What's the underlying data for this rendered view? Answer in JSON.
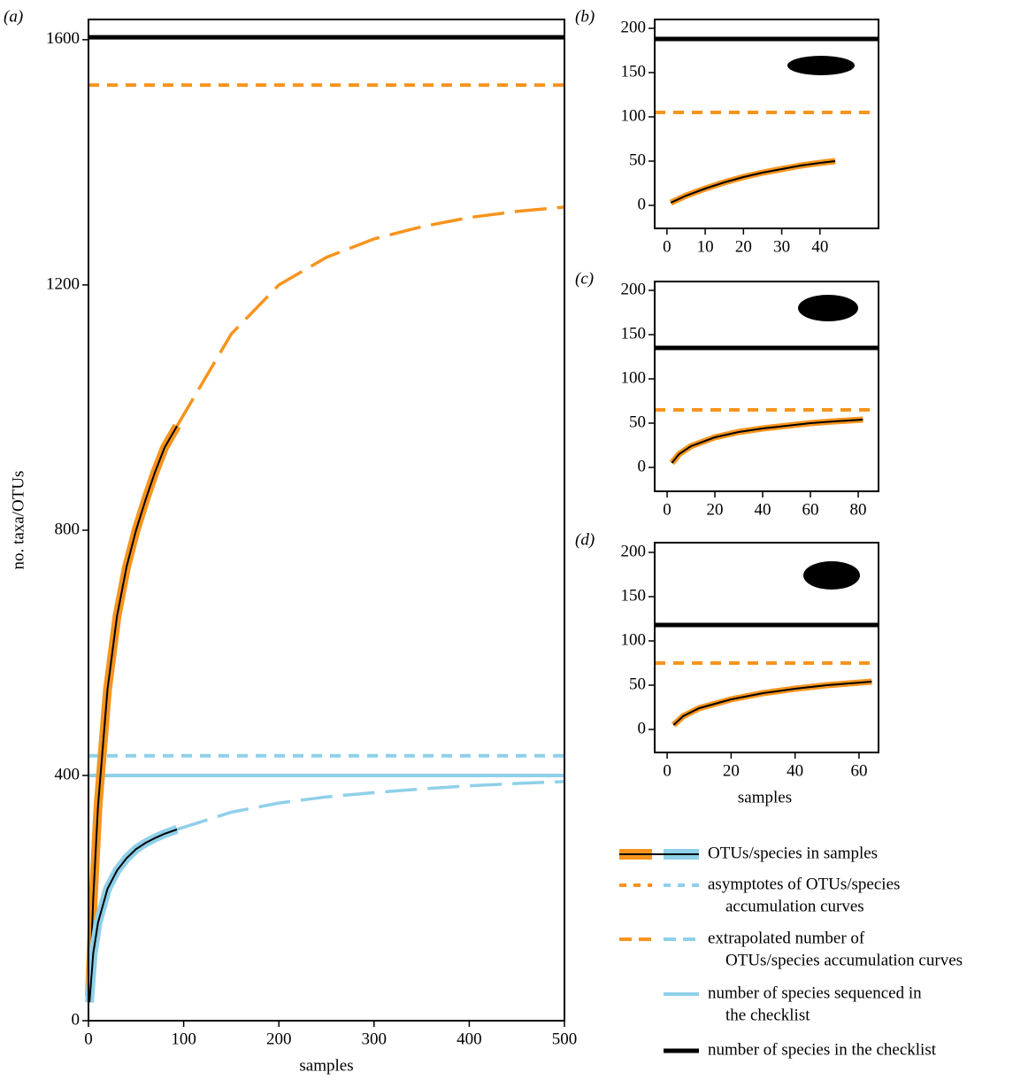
{
  "chart_data": [
    {
      "type": "line",
      "label": "(a)",
      "xlabel": "samples",
      "ylabel": "no. taxa/OTUs",
      "xlim": [
        0,
        500
      ],
      "ylim": [
        0,
        1633
      ],
      "xticks": [
        0,
        100,
        200,
        300,
        400,
        500
      ],
      "yticks": [
        0,
        400,
        800,
        1200,
        1600
      ],
      "hlines": [
        {
          "value": 1604,
          "color": "#000000",
          "style": "solid"
        },
        {
          "value": 1526,
          "color": "#f7941d",
          "style": "dashed"
        },
        {
          "value": 432,
          "color": "#8fd0ea",
          "style": "dashed"
        },
        {
          "value": 400,
          "color": "#8fd0ea",
          "style": "solid"
        }
      ],
      "series": [
        {
          "color": "#f7941d",
          "style": "band",
          "x": [
            1,
            5,
            10,
            20,
            30,
            40,
            50,
            60,
            70,
            80,
            93
          ],
          "values": [
            40,
            200,
            350,
            540,
            660,
            740,
            800,
            850,
            895,
            935,
            970
          ]
        },
        {
          "color": "#f7941d",
          "style": "longdash",
          "x": [
            93,
            150,
            200,
            250,
            300,
            350,
            400,
            450,
            500
          ],
          "values": [
            970,
            1120,
            1200,
            1245,
            1275,
            1295,
            1310,
            1320,
            1327
          ]
        },
        {
          "color": "#8fd0ea",
          "style": "band",
          "x": [
            1,
            5,
            10,
            20,
            30,
            40,
            50,
            60,
            70,
            80,
            93
          ],
          "values": [
            30,
            110,
            160,
            215,
            245,
            265,
            280,
            290,
            298,
            305,
            312
          ]
        },
        {
          "color": "#8fd0ea",
          "style": "longdash",
          "x": [
            93,
            150,
            200,
            250,
            300,
            350,
            400,
            450,
            500
          ],
          "values": [
            312,
            340,
            355,
            365,
            372,
            378,
            383,
            387,
            390
          ]
        }
      ]
    },
    {
      "type": "line",
      "label": "(b)",
      "xlim": [
        -3.2,
        55.3
      ],
      "ylim": [
        -26,
        210
      ],
      "xticks": [
        0,
        10,
        20,
        30,
        40
      ],
      "yticks": [
        0,
        50,
        100,
        150,
        200
      ],
      "hlines": [
        {
          "value": 188,
          "color": "#000000",
          "style": "solid"
        },
        {
          "value": 105,
          "color": "#f7941d",
          "style": "dashed"
        }
      ],
      "series": [
        {
          "color": "#f7941d",
          "style": "band",
          "x": [
            1,
            5,
            10,
            15,
            20,
            25,
            30,
            35,
            40,
            44
          ],
          "values": [
            3,
            11,
            19,
            26,
            32,
            37,
            41,
            45,
            48,
            50
          ]
        }
      ]
    },
    {
      "type": "line",
      "label": "(c)",
      "xlim": [
        -5.2,
        88.5
      ],
      "ylim": [
        -27,
        210
      ],
      "xticks": [
        0,
        20,
        40,
        60,
        80
      ],
      "yticks": [
        0,
        50,
        100,
        150,
        200
      ],
      "hlines": [
        {
          "value": 135,
          "color": "#000000",
          "style": "solid"
        },
        {
          "value": 65,
          "color": "#f7941d",
          "style": "dashed"
        }
      ],
      "series": [
        {
          "color": "#f7941d",
          "style": "band",
          "x": [
            2,
            5,
            10,
            20,
            30,
            40,
            50,
            60,
            70,
            82
          ],
          "values": [
            5,
            15,
            24,
            34,
            40,
            44,
            47,
            50,
            52,
            54
          ]
        }
      ]
    },
    {
      "type": "line",
      "label": "(d)",
      "xlabel": "samples",
      "xlim": [
        -3.9,
        66.1
      ],
      "ylim": [
        -26,
        211
      ],
      "xticks": [
        0,
        20,
        40,
        60
      ],
      "yticks": [
        0,
        50,
        100,
        150,
        200
      ],
      "hlines": [
        {
          "value": 118,
          "color": "#000000",
          "style": "solid"
        },
        {
          "value": 75,
          "color": "#f7941d",
          "style": "dashed"
        }
      ],
      "series": [
        {
          "color": "#f7941d",
          "style": "band",
          "x": [
            2,
            5,
            10,
            20,
            30,
            40,
            50,
            64
          ],
          "values": [
            5,
            15,
            24,
            34,
            41,
            46,
            50,
            54
          ]
        }
      ]
    }
  ],
  "legend": [
    {
      "label": [
        "OTUs/species in samples"
      ],
      "colors": [
        "#f7941d",
        "#8fd0ea"
      ],
      "style": "band"
    },
    {
      "label": [
        "asymptotes of OTUs/species",
        "accumulation curves"
      ],
      "colors": [
        "#f7941d",
        "#8fd0ea"
      ],
      "style": "dashed"
    },
    {
      "label": [
        "extrapolated number of",
        "OTUs/species accumulation curves"
      ],
      "colors": [
        "#f7941d",
        "#8fd0ea"
      ],
      "style": "longdash"
    },
    {
      "label": [
        "number of species sequenced in",
        "the checklist"
      ],
      "colors": [
        "#8fd0ea"
      ],
      "style": "solid"
    },
    {
      "label": [
        "number of species in the checklist"
      ],
      "colors": [
        "#000000"
      ],
      "style": "solid"
    }
  ]
}
